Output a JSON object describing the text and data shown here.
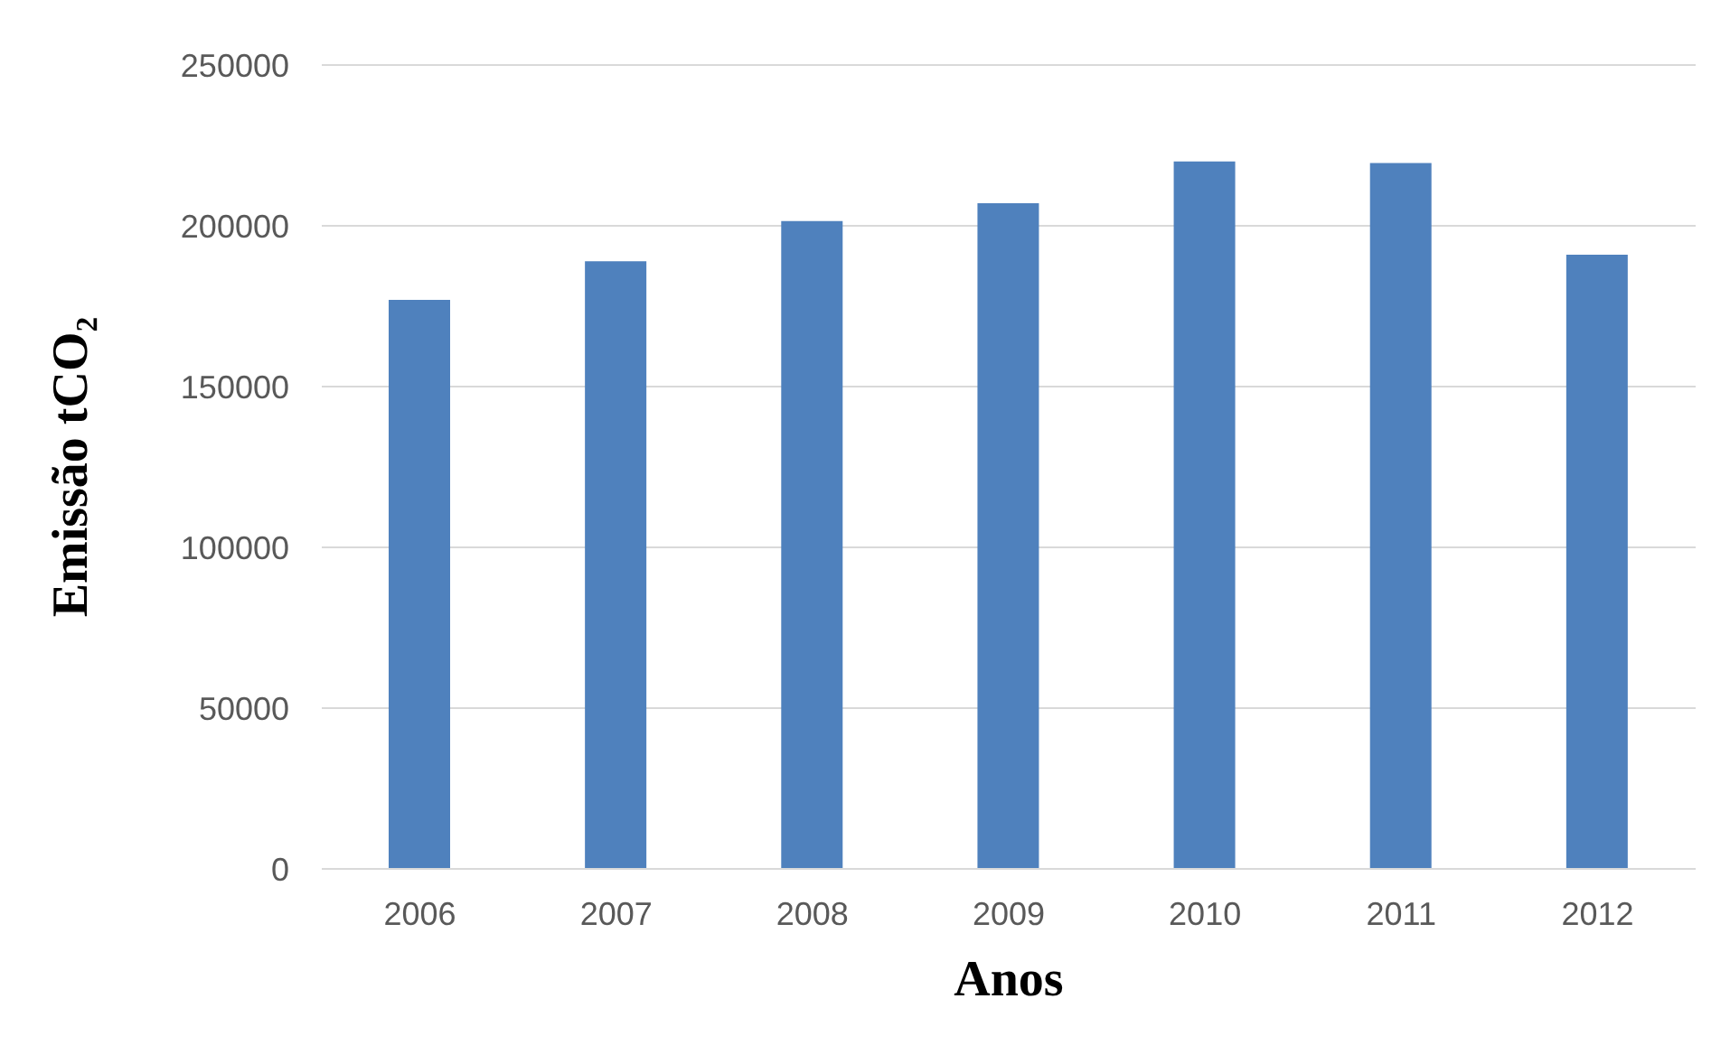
{
  "chart_data": {
    "type": "bar",
    "xlabel": "Anos",
    "ylabel": "Emissão tCO₂",
    "categories": [
      "2006",
      "2007",
      "2008",
      "2009",
      "2010",
      "2011",
      "2012"
    ],
    "values": [
      177000,
      189000,
      201500,
      207000,
      220000,
      219500,
      191000
    ],
    "color": "#4f81bd",
    "ylim": [
      0,
      250000
    ],
    "yticks": [
      0,
      50000,
      100000,
      150000,
      200000,
      250000
    ],
    "grid": "y"
  }
}
